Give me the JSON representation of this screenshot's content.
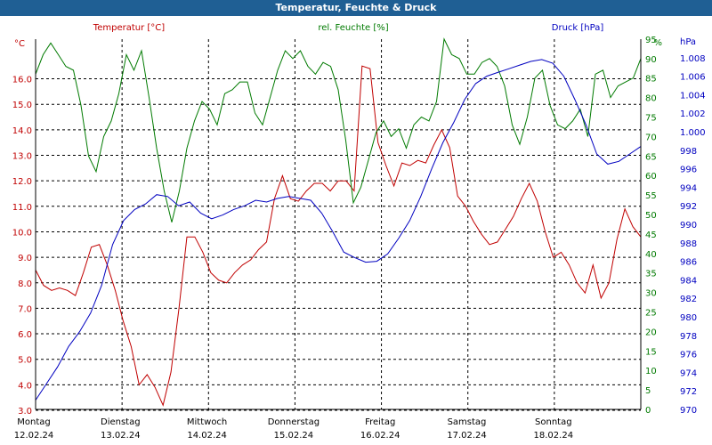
{
  "window": {
    "title": "Temperatur, Feuchte & Druck"
  },
  "chart_data": {
    "type": "line",
    "title": "Temperatur, Feuchte & Druck",
    "grid": true,
    "x": {
      "labels": [
        {
          "day": "Montag",
          "date": "12.02.24"
        },
        {
          "day": "Dienstag",
          "date": "13.02.24"
        },
        {
          "day": "Mittwoch",
          "date": "14.02.24"
        },
        {
          "day": "Donnerstag",
          "date": "15.02.24"
        },
        {
          "day": "Freitag",
          "date": "16.02.24"
        },
        {
          "day": "Samstag",
          "date": "17.02.24"
        },
        {
          "day": "Sonntag",
          "date": "18.02.24"
        }
      ]
    },
    "axes": {
      "temperature": {
        "label": "Temperatur [°C]",
        "unit": "°C",
        "color": "#c00000",
        "ticks": [
          "3.0",
          "4.0",
          "5.0",
          "6.0",
          "7.0",
          "8.0",
          "9.0",
          "10.0",
          "11.0",
          "12.0",
          "13.0",
          "14.0",
          "15.0",
          "16.0"
        ]
      },
      "humidity": {
        "label": "rel. Feuchte [%]",
        "unit": "%",
        "color": "#007a00",
        "ticks": [
          "0",
          "5",
          "10",
          "15",
          "20",
          "25",
          "30",
          "35",
          "40",
          "45",
          "50",
          "55",
          "60",
          "65",
          "70",
          "75",
          "80",
          "85",
          "90",
          "95"
        ]
      },
      "pressure": {
        "label": "Druck [hPa]",
        "unit": "hPa",
        "color": "#0000c0",
        "ticks": [
          "970",
          "972",
          "974",
          "976",
          "978",
          "980",
          "982",
          "984",
          "986",
          "988",
          "990",
          "992",
          "994",
          "996",
          "998",
          "1.000",
          "1.002",
          "1.004",
          "1.006",
          "1.008"
        ]
      }
    },
    "series": [
      {
        "name": "Temperatur [°C]",
        "axis": "temperature",
        "color": "#c00000",
        "values": [
          8.5,
          7.9,
          7.7,
          7.8,
          7.7,
          7.5,
          8.4,
          9.4,
          9.5,
          8.7,
          7.7,
          6.5,
          5.5,
          4.0,
          4.4,
          3.9,
          3.2,
          4.5,
          7.0,
          9.8,
          9.8,
          9.2,
          8.4,
          8.1,
          8.0,
          8.4,
          8.7,
          8.9,
          9.3,
          9.6,
          11.3,
          12.2,
          11.3,
          11.2,
          11.6,
          11.9,
          11.9,
          11.6,
          12.0,
          12.0,
          11.6,
          16.5,
          16.4,
          13.5,
          12.6,
          11.8,
          12.7,
          12.6,
          12.8,
          12.7,
          13.4,
          14.0,
          13.3,
          11.4,
          11.0,
          10.4,
          9.9,
          9.5,
          9.6,
          10.1,
          10.6,
          11.3,
          11.9,
          11.2,
          10.0,
          9.0,
          9.2,
          8.7,
          8.0,
          7.6,
          8.7,
          7.4,
          8.0,
          9.7,
          10.9,
          10.2,
          9.8
        ]
      },
      {
        "name": "rel. Feuchte [%]",
        "axis": "humidity",
        "color": "#007a00",
        "values": [
          86,
          91,
          94,
          91,
          88,
          87,
          78,
          65,
          61,
          70,
          74,
          81,
          91,
          87,
          92,
          80,
          67,
          56,
          48,
          56,
          67,
          74,
          79,
          77,
          73,
          81,
          82,
          84,
          84,
          76,
          73,
          80,
          87,
          92,
          90,
          92,
          88,
          86,
          89,
          88,
          82,
          69,
          53,
          57,
          64,
          71,
          74,
          70,
          72,
          67,
          73,
          75,
          74,
          79,
          95,
          91,
          90,
          86,
          86,
          89,
          90,
          88,
          83,
          73,
          68,
          75,
          85,
          87,
          78,
          73,
          72,
          74,
          77,
          70,
          86,
          87,
          80,
          83,
          84,
          85,
          90
        ]
      },
      {
        "name": "Druck [hPa]",
        "axis": "pressure",
        "color": "#0000c0",
        "values": [
          971.0,
          972.8,
          974.6,
          976.8,
          978.4,
          980.4,
          983.4,
          987.8,
          990.4,
          991.6,
          992.2,
          993.2,
          993.0,
          992.0,
          992.4,
          991.2,
          990.6,
          991.0,
          991.6,
          992.0,
          992.6,
          992.4,
          992.8,
          993.0,
          992.8,
          992.6,
          991.2,
          989.2,
          987.0,
          986.4,
          985.9,
          986.0,
          986.8,
          988.5,
          990.4,
          993.0,
          996.0,
          998.8,
          1001.0,
          1003.5,
          1005.2,
          1006.0,
          1006.4,
          1006.8,
          1007.2,
          1007.6,
          1007.8,
          1007.4,
          1006.0,
          1003.5,
          1000.8,
          997.6,
          996.5,
          996.8,
          997.6,
          998.4
        ]
      }
    ]
  }
}
